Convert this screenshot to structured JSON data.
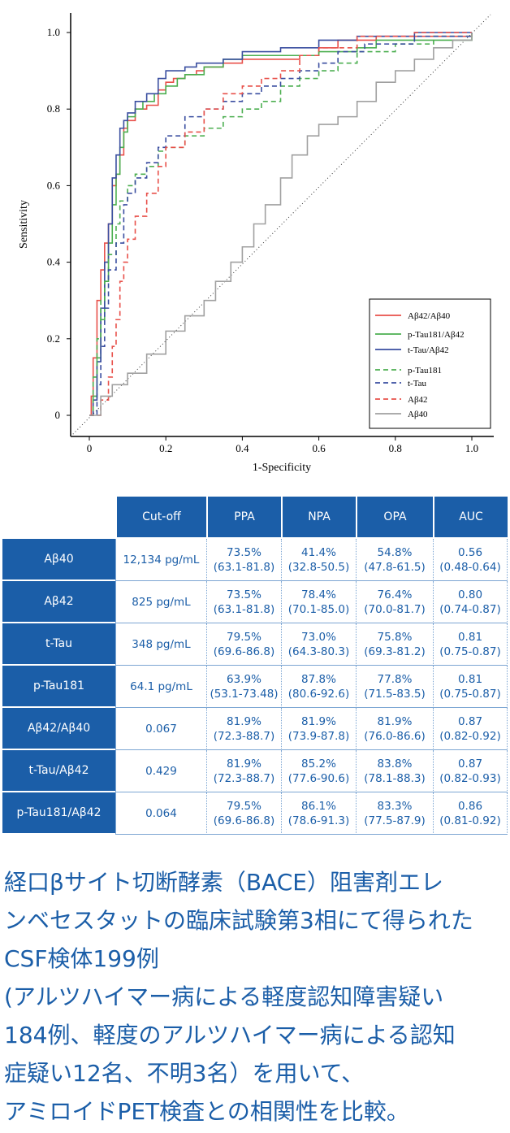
{
  "chart_data": {
    "type": "line",
    "xlabel": "1-Specificity",
    "ylabel": "Sensitivity",
    "xlim": [
      0,
      1
    ],
    "ylim": [
      0,
      1
    ],
    "x_ticks": [
      "0",
      "0.2",
      "0.4",
      "0.6",
      "0.8",
      "1.0"
    ],
    "y_ticks": [
      "0",
      "0.2",
      "0.4",
      "0.6",
      "0.8",
      "1.0"
    ],
    "legend_position": "bottom-right",
    "diagonal_reference": true,
    "series": [
      {
        "name": "Aβ42/Aβ40",
        "color": "#e8504a",
        "style": "solid",
        "points": [
          [
            0,
            0
          ],
          [
            0.005,
            0.05
          ],
          [
            0.01,
            0.15
          ],
          [
            0.02,
            0.3
          ],
          [
            0.03,
            0.38
          ],
          [
            0.04,
            0.45
          ],
          [
            0.05,
            0.5
          ],
          [
            0.06,
            0.6
          ],
          [
            0.07,
            0.63
          ],
          [
            0.08,
            0.68
          ],
          [
            0.09,
            0.75
          ],
          [
            0.1,
            0.77
          ],
          [
            0.12,
            0.8
          ],
          [
            0.15,
            0.81
          ],
          [
            0.18,
            0.85
          ],
          [
            0.2,
            0.87
          ],
          [
            0.22,
            0.88
          ],
          [
            0.25,
            0.89
          ],
          [
            0.28,
            0.9
          ],
          [
            0.3,
            0.91
          ],
          [
            0.35,
            0.92
          ],
          [
            0.4,
            0.93
          ],
          [
            0.5,
            0.93
          ],
          [
            0.55,
            0.94
          ],
          [
            0.6,
            0.96
          ],
          [
            0.65,
            0.98
          ],
          [
            0.75,
            0.99
          ],
          [
            0.85,
            0.99
          ],
          [
            1,
            1
          ]
        ]
      },
      {
        "name": "p-Tau181/Aβ42",
        "color": "#4caf50",
        "style": "solid",
        "points": [
          [
            0,
            0
          ],
          [
            0.01,
            0.05
          ],
          [
            0.02,
            0.15
          ],
          [
            0.03,
            0.25
          ],
          [
            0.04,
            0.35
          ],
          [
            0.05,
            0.45
          ],
          [
            0.06,
            0.55
          ],
          [
            0.07,
            0.63
          ],
          [
            0.08,
            0.7
          ],
          [
            0.09,
            0.74
          ],
          [
            0.1,
            0.78
          ],
          [
            0.12,
            0.8
          ],
          [
            0.14,
            0.82
          ],
          [
            0.17,
            0.84
          ],
          [
            0.2,
            0.86
          ],
          [
            0.23,
            0.88
          ],
          [
            0.25,
            0.89
          ],
          [
            0.3,
            0.91
          ],
          [
            0.35,
            0.93
          ],
          [
            0.4,
            0.94
          ],
          [
            0.5,
            0.94
          ],
          [
            0.6,
            0.95
          ],
          [
            0.7,
            0.96
          ],
          [
            0.75,
            0.98
          ],
          [
            0.85,
            0.98
          ],
          [
            1,
            1
          ]
        ]
      },
      {
        "name": "t-Tau/Aβ42",
        "color": "#3a4ea0",
        "style": "solid",
        "points": [
          [
            0,
            0
          ],
          [
            0.01,
            0.04
          ],
          [
            0.02,
            0.14
          ],
          [
            0.03,
            0.28
          ],
          [
            0.04,
            0.4
          ],
          [
            0.05,
            0.5
          ],
          [
            0.06,
            0.62
          ],
          [
            0.07,
            0.68
          ],
          [
            0.08,
            0.75
          ],
          [
            0.09,
            0.77
          ],
          [
            0.1,
            0.79
          ],
          [
            0.12,
            0.82
          ],
          [
            0.15,
            0.84
          ],
          [
            0.18,
            0.88
          ],
          [
            0.2,
            0.9
          ],
          [
            0.25,
            0.91
          ],
          [
            0.28,
            0.92
          ],
          [
            0.35,
            0.93
          ],
          [
            0.4,
            0.95
          ],
          [
            0.5,
            0.96
          ],
          [
            0.6,
            0.98
          ],
          [
            0.7,
            0.99
          ],
          [
            0.85,
            1
          ],
          [
            1,
            1
          ]
        ]
      },
      {
        "name": "p-Tau181",
        "color": "#4caf50",
        "style": "dashed",
        "points": [
          [
            0,
            0
          ],
          [
            0.01,
            0.1
          ],
          [
            0.02,
            0.2
          ],
          [
            0.03,
            0.3
          ],
          [
            0.04,
            0.35
          ],
          [
            0.05,
            0.42
          ],
          [
            0.07,
            0.5
          ],
          [
            0.08,
            0.56
          ],
          [
            0.1,
            0.6
          ],
          [
            0.12,
            0.63
          ],
          [
            0.15,
            0.65
          ],
          [
            0.18,
            0.69
          ],
          [
            0.2,
            0.7
          ],
          [
            0.25,
            0.73
          ],
          [
            0.3,
            0.75
          ],
          [
            0.35,
            0.78
          ],
          [
            0.4,
            0.8
          ],
          [
            0.45,
            0.82
          ],
          [
            0.5,
            0.86
          ],
          [
            0.55,
            0.88
          ],
          [
            0.6,
            0.9
          ],
          [
            0.65,
            0.92
          ],
          [
            0.7,
            0.95
          ],
          [
            0.8,
            0.97
          ],
          [
            0.9,
            0.99
          ],
          [
            1,
            1
          ]
        ]
      },
      {
        "name": "t-Tau",
        "color": "#3a4ea0",
        "style": "dashed",
        "points": [
          [
            0,
            0
          ],
          [
            0.02,
            0.08
          ],
          [
            0.03,
            0.18
          ],
          [
            0.04,
            0.28
          ],
          [
            0.05,
            0.38
          ],
          [
            0.07,
            0.45
          ],
          [
            0.09,
            0.55
          ],
          [
            0.1,
            0.58
          ],
          [
            0.12,
            0.62
          ],
          [
            0.15,
            0.66
          ],
          [
            0.18,
            0.7
          ],
          [
            0.2,
            0.73
          ],
          [
            0.25,
            0.78
          ],
          [
            0.3,
            0.8
          ],
          [
            0.35,
            0.82
          ],
          [
            0.4,
            0.84
          ],
          [
            0.45,
            0.86
          ],
          [
            0.5,
            0.88
          ],
          [
            0.55,
            0.9
          ],
          [
            0.6,
            0.92
          ],
          [
            0.65,
            0.95
          ],
          [
            0.72,
            0.97
          ],
          [
            0.85,
            0.99
          ],
          [
            1,
            1
          ]
        ]
      },
      {
        "name": "Aβ42",
        "color": "#e8504a",
        "style": "dashed",
        "points": [
          [
            0,
            0
          ],
          [
            0.03,
            0.04
          ],
          [
            0.05,
            0.1
          ],
          [
            0.06,
            0.18
          ],
          [
            0.07,
            0.25
          ],
          [
            0.08,
            0.35
          ],
          [
            0.09,
            0.4
          ],
          [
            0.1,
            0.46
          ],
          [
            0.12,
            0.52
          ],
          [
            0.15,
            0.58
          ],
          [
            0.18,
            0.65
          ],
          [
            0.2,
            0.7
          ],
          [
            0.25,
            0.74
          ],
          [
            0.3,
            0.8
          ],
          [
            0.35,
            0.84
          ],
          [
            0.4,
            0.86
          ],
          [
            0.45,
            0.88
          ],
          [
            0.5,
            0.9
          ],
          [
            0.55,
            0.94
          ],
          [
            0.6,
            0.96
          ],
          [
            0.7,
            0.99
          ],
          [
            0.85,
            1
          ],
          [
            1,
            1
          ]
        ]
      },
      {
        "name": "Aβ40",
        "color": "#a0a0a0",
        "style": "solid",
        "points": [
          [
            0,
            0
          ],
          [
            0.03,
            0.05
          ],
          [
            0.06,
            0.08
          ],
          [
            0.1,
            0.11
          ],
          [
            0.15,
            0.16
          ],
          [
            0.2,
            0.22
          ],
          [
            0.25,
            0.26
          ],
          [
            0.3,
            0.3
          ],
          [
            0.33,
            0.35
          ],
          [
            0.37,
            0.4
          ],
          [
            0.4,
            0.44
          ],
          [
            0.43,
            0.5
          ],
          [
            0.46,
            0.55
          ],
          [
            0.5,
            0.62
          ],
          [
            0.53,
            0.68
          ],
          [
            0.57,
            0.73
          ],
          [
            0.6,
            0.76
          ],
          [
            0.65,
            0.78
          ],
          [
            0.7,
            0.82
          ],
          [
            0.75,
            0.87
          ],
          [
            0.8,
            0.9
          ],
          [
            0.85,
            0.93
          ],
          [
            0.9,
            0.96
          ],
          [
            0.95,
            0.98
          ],
          [
            1,
            1
          ]
        ]
      }
    ]
  },
  "table": {
    "headers": [
      "Cut-off",
      "PPA",
      "NPA",
      "OPA",
      "AUC"
    ],
    "rows": [
      {
        "name": "Aβ40",
        "cutoff": "12,134 pg/mL",
        "ppa": "73.5%",
        "ppa_ci": "(63.1-81.8)",
        "npa": "41.4%",
        "npa_ci": "(32.8-50.5)",
        "opa": "54.8%",
        "opa_ci": "(47.8-61.5)",
        "auc": "0.56",
        "auc_ci": "(0.48-0.64)"
      },
      {
        "name": "Aβ42",
        "cutoff": "825 pg/mL",
        "ppa": "73.5%",
        "ppa_ci": "(63.1-81.8)",
        "npa": "78.4%",
        "npa_ci": "(70.1-85.0)",
        "opa": "76.4%",
        "opa_ci": "(70.0-81.7)",
        "auc": "0.80",
        "auc_ci": "(0.74-0.87)"
      },
      {
        "name": "t-Tau",
        "cutoff": "348 pg/mL",
        "ppa": "79.5%",
        "ppa_ci": "(69.6-86.8)",
        "npa": "73.0%",
        "npa_ci": "(64.3-80.3)",
        "opa": "75.8%",
        "opa_ci": "(69.3-81.2)",
        "auc": "0.81",
        "auc_ci": "(0.75-0.87)"
      },
      {
        "name": "p-Tau181",
        "cutoff": "64.1 pg/mL",
        "ppa": "63.9%",
        "ppa_ci": "(53.1-73.48)",
        "npa": "87.8%",
        "npa_ci": "(80.6-92.6)",
        "opa": "77.8%",
        "opa_ci": "(71.5-83.5)",
        "auc": "0.81",
        "auc_ci": "(0.75-0.87)"
      },
      {
        "name": "Aβ42/Aβ40",
        "cutoff": "0.067",
        "ppa": "81.9%",
        "ppa_ci": "(72.3-88.7)",
        "npa": "81.9%",
        "npa_ci": "(73.9-87.8)",
        "opa": "81.9%",
        "opa_ci": "(76.0-86.6)",
        "auc": "0.87",
        "auc_ci": "(0.82-0.92)"
      },
      {
        "name": "t-Tau/Aβ42",
        "cutoff": "0.429",
        "ppa": "81.9%",
        "ppa_ci": "(72.3-88.7)",
        "npa": "85.2%",
        "npa_ci": "(77.6-90.6)",
        "opa": "83.8%",
        "opa_ci": "(78.1-88.3)",
        "auc": "0.87",
        "auc_ci": "(0.82-0.93)"
      },
      {
        "name": "p-Tau181/Aβ42",
        "cutoff": "0.064",
        "ppa": "79.5%",
        "ppa_ci": "(69.6-86.8)",
        "npa": "86.1%",
        "npa_ci": "(78.6-91.3)",
        "opa": "83.3%",
        "opa_ci": "(77.5-87.9)",
        "auc": "0.86",
        "auc_ci": "(0.81-0.92)"
      }
    ]
  },
  "caption": {
    "lines": [
      "経口βサイト切断酵素（BACE）阻害剤エレ",
      "ンベセスタットの臨床試験第3相にて得られた",
      "CSF検体199例",
      "(アルツハイマー病による軽度認知障害疑い",
      "184例、軽度のアルツハイマー病による認知",
      "症疑い12名、不明3名）を用いて、",
      "アミロイドPET検査との相関性を比較。"
    ]
  }
}
